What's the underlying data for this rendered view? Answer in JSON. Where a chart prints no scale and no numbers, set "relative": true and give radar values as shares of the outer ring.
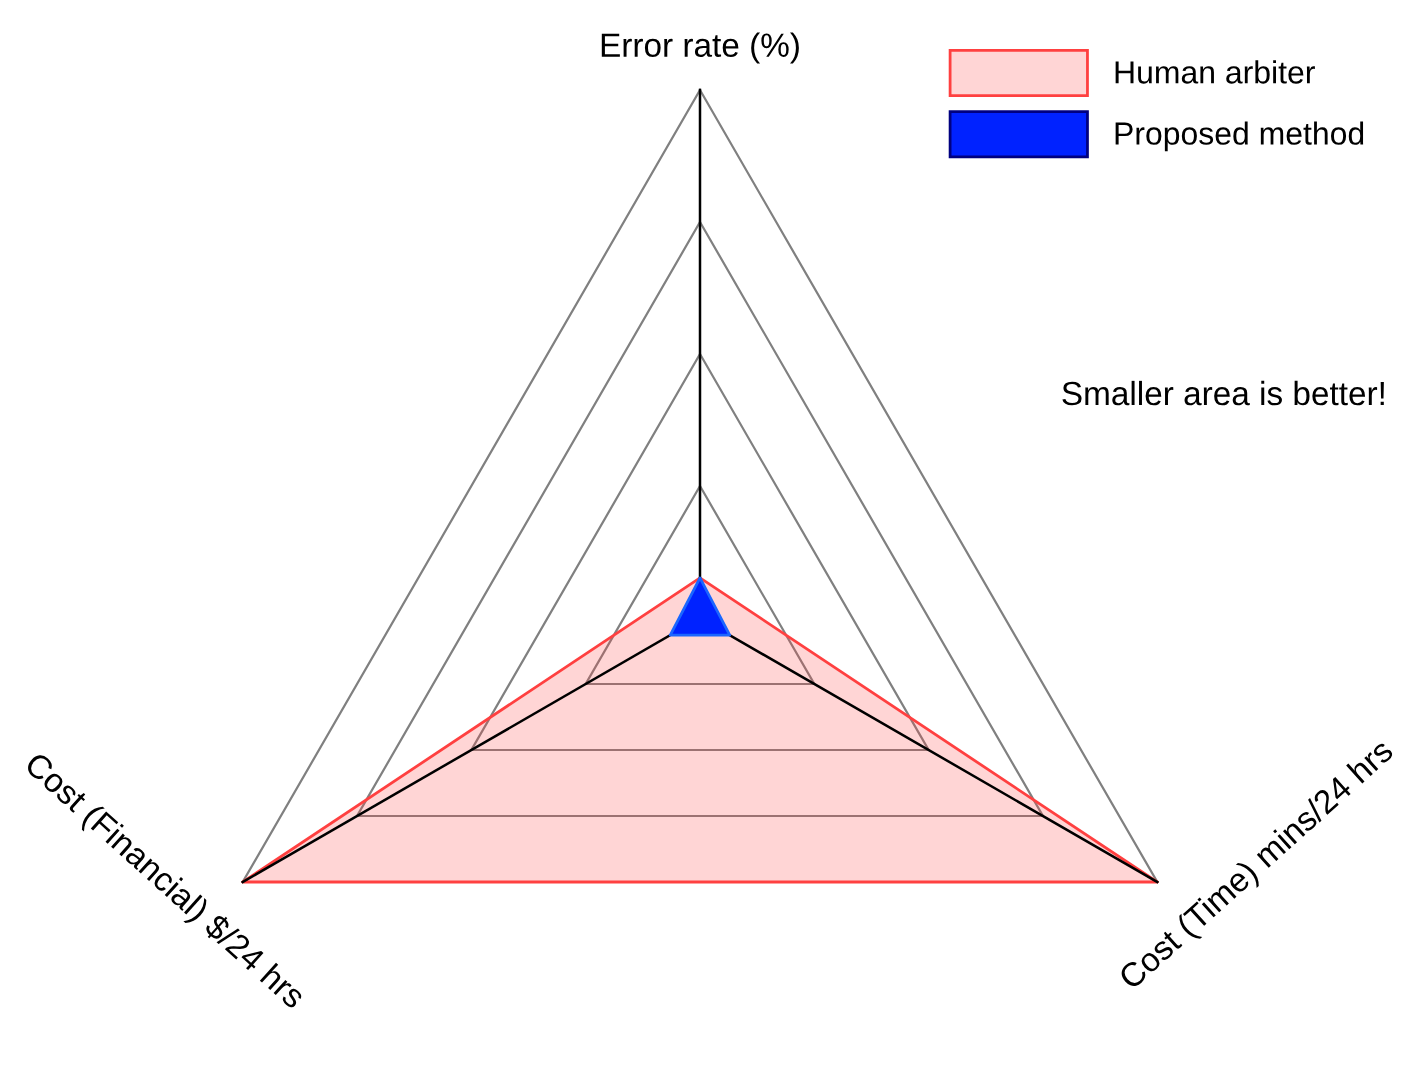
{
  "chart_data": {
    "type": "radar",
    "relative": true,
    "grid": true,
    "legend": "top right",
    "categories": [
      "Error rate (%)",
      "Cost (Time) mins/24 hrs",
      "Cost (Financial) $/24 hrs"
    ],
    "series": [
      {
        "name": "Human arbiter",
        "color": "#ff4040",
        "values": [
          0.076,
          1,
          1
        ]
      },
      {
        "name": "Proposed method",
        "color": "#0022ff",
        "values": [
          0.076,
          0.065,
          0.065
        ]
      }
    ],
    "annotations": [
      "Smaller area is better!"
    ]
  }
}
